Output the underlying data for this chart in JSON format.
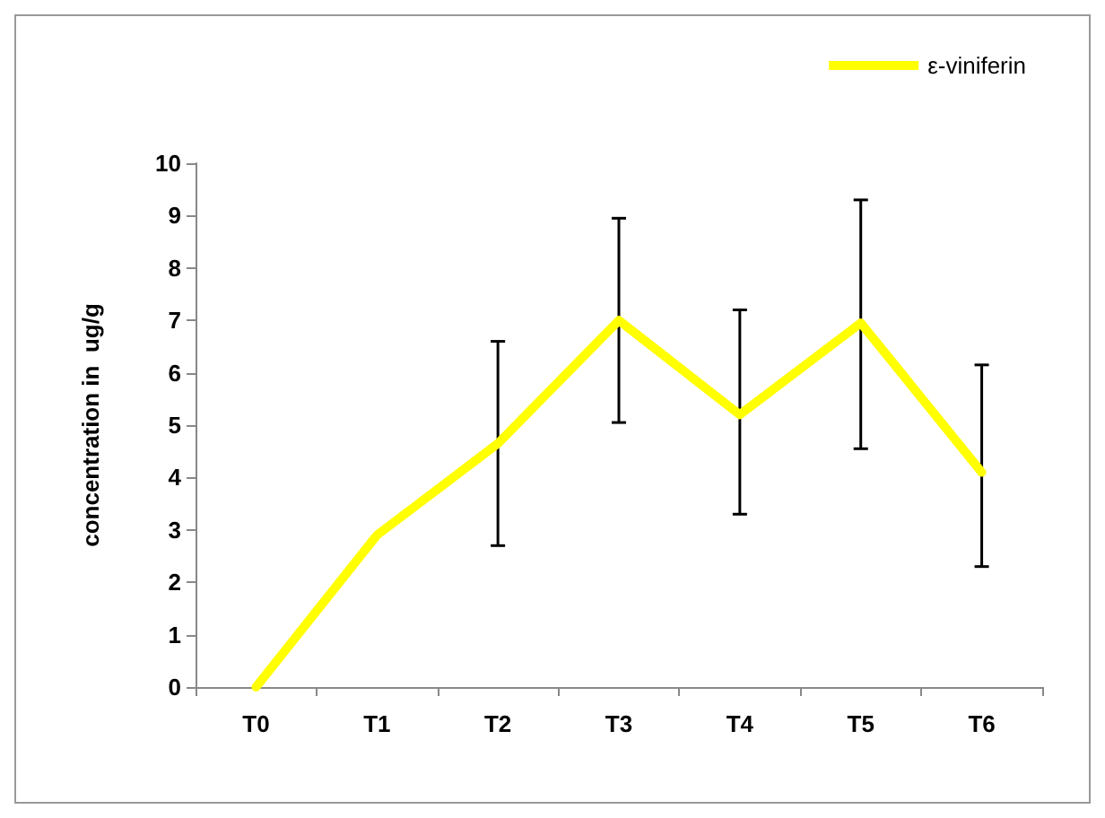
{
  "chart_data": {
    "type": "line",
    "ylabel": "concentration in  ug/g",
    "categories": [
      "T0",
      "T1",
      "T2",
      "T3",
      "T4",
      "T5",
      "T6"
    ],
    "series": [
      {
        "name": "ε-viniferin",
        "color": "#ffff00",
        "values": [
          0,
          2.9,
          4.65,
          7.0,
          5.2,
          6.95,
          4.1
        ],
        "errors": [
          null,
          null,
          [
            2.7,
            6.6
          ],
          [
            5.05,
            8.95
          ],
          [
            3.3,
            7.2
          ],
          [
            4.55,
            9.3
          ],
          [
            2.3,
            6.15
          ]
        ]
      }
    ],
    "ylim": [
      0,
      10
    ],
    "yticks": [
      0,
      1,
      2,
      3,
      4,
      5,
      6,
      7,
      8,
      9,
      10
    ],
    "grid": false,
    "legend": "top right",
    "marker": "none",
    "line_style": "solid"
  }
}
